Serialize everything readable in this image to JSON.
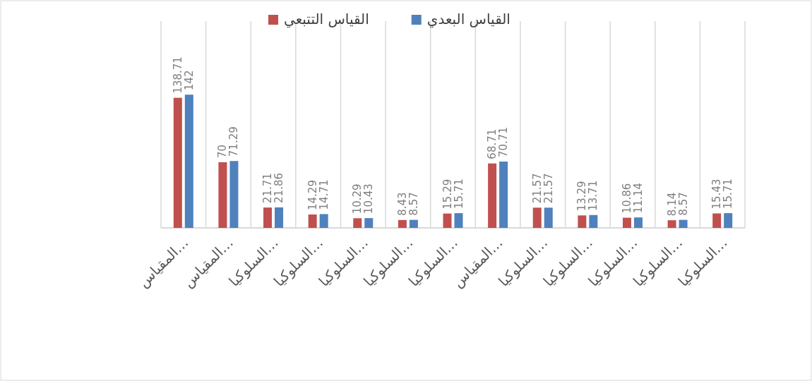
{
  "chart_data": {
    "type": "bar",
    "categories": [
      "المقياس…",
      "المقياس…",
      "السلوكيا…",
      "السلوكيا…",
      "السلوكيا…",
      "السلوكيا…",
      "السلوكيا…",
      "المقياس…",
      "السلوكيا…",
      "السلوكيا…",
      "السلوكيا…",
      "السلوكيا…",
      "السلوكيا…"
    ],
    "series": [
      {
        "name": "القياس التتبعي",
        "color": "#c0504d",
        "values": [
          138.71,
          70,
          21.71,
          14.29,
          10.29,
          8.43,
          15.29,
          68.71,
          21.57,
          13.29,
          10.86,
          8.14,
          15.43
        ]
      },
      {
        "name": "القياس البعدي",
        "color": "#4f81bd",
        "values": [
          142,
          71.29,
          21.86,
          14.71,
          10.43,
          8.57,
          15.71,
          70.71,
          21.57,
          13.71,
          11.14,
          8.57,
          15.71
        ]
      }
    ],
    "data_labels": true,
    "grid": "x",
    "legend": "top"
  }
}
